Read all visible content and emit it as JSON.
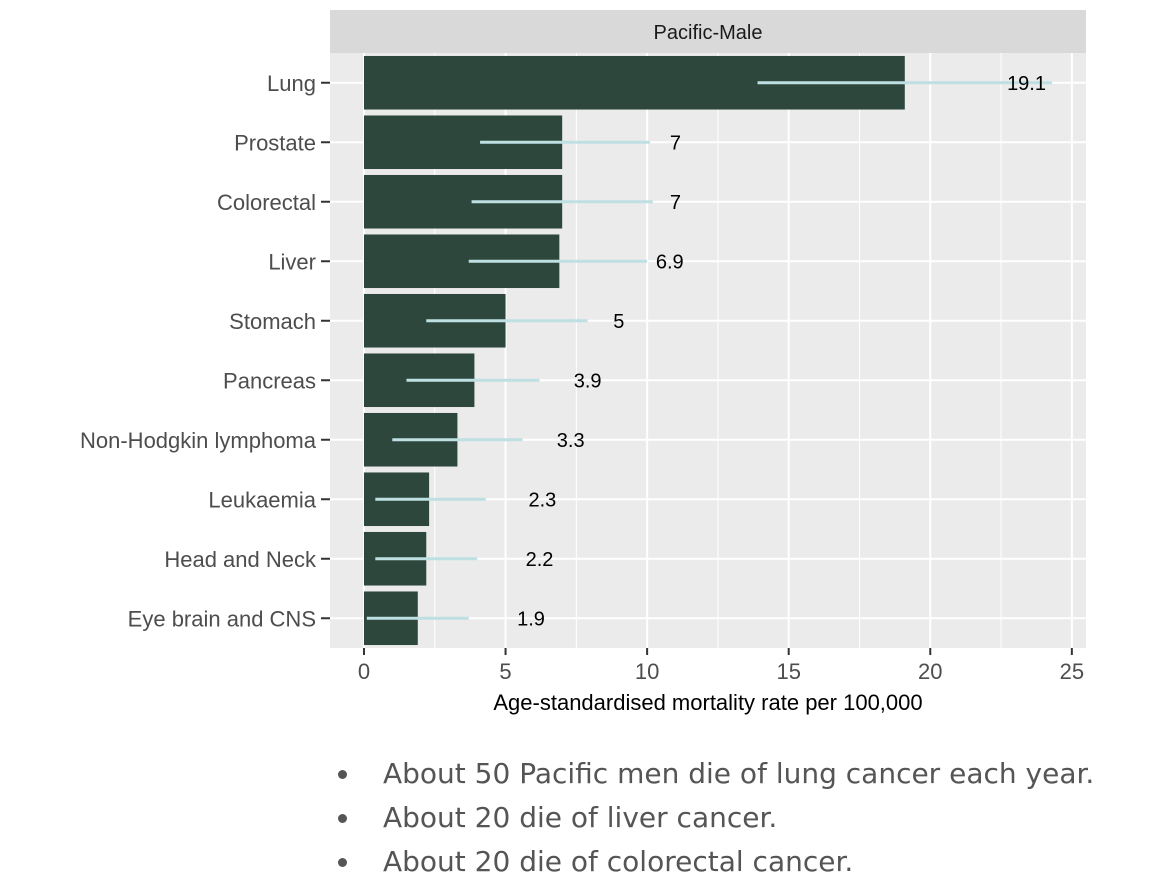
{
  "chart_data": {
    "type": "bar",
    "orientation": "horizontal",
    "title": "Pacific-Male",
    "xlabel": "Age-standardised mortality rate per 100,000",
    "ylabel": "",
    "xlim": [
      -1.2,
      25.5
    ],
    "xticks": [
      0,
      5,
      10,
      15,
      20,
      25
    ],
    "grid": true,
    "bar_color": "#2d473c",
    "errorbar_color": "#bfe0e3",
    "panel_color": "#ebebeb",
    "strip_color": "#d9d9d9",
    "categories": [
      "Lung",
      "Prostate",
      "Colorectal",
      "Liver",
      "Stomach",
      "Pancreas",
      "Non-Hodgkin lymphoma",
      "Leukaemia",
      "Head and Neck",
      "Eye brain and  CNS"
    ],
    "values": [
      19.1,
      7,
      7,
      6.9,
      5,
      3.9,
      3.3,
      2.3,
      2.2,
      1.9
    ],
    "value_labels": [
      "19.1",
      "7",
      "7",
      "6.9",
      "5",
      "3.9",
      "3.3",
      "2.3",
      "2.2",
      "1.9"
    ],
    "ci_lower": [
      13.9,
      4.1,
      3.8,
      3.7,
      2.2,
      1.5,
      1.0,
      0.4,
      0.4,
      0.1
    ],
    "ci_upper": [
      24.3,
      10.1,
      10.2,
      10.0,
      7.9,
      6.2,
      5.6,
      4.3,
      4.0,
      3.7
    ],
    "label_x": [
      23.4,
      11.0,
      11.0,
      10.8,
      9.0,
      7.9,
      7.3,
      6.3,
      6.2,
      5.9
    ]
  },
  "notes": [
    "About 50 Pacific men die of lung cancer each year.",
    "About 20 die of liver cancer.",
    "About 20 die of colorectal cancer."
  ]
}
